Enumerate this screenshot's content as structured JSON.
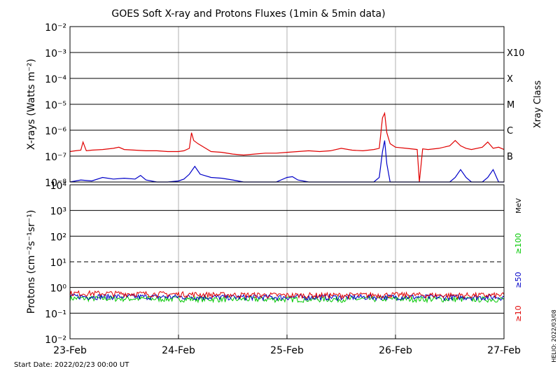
{
  "chart_data": [
    {
      "type": "line",
      "title": "GOES Soft X-ray and Protons Fluxes   (1min & 5min data)",
      "ylabel": "X-rays (Watts m⁻²)",
      "yscale": "log",
      "ylim": [
        1e-08,
        0.01
      ],
      "y_tick_labels": [
        "10⁻⁸",
        "10⁻⁷",
        "10⁻⁶",
        "10⁻⁵",
        "10⁻⁴",
        "10⁻³",
        "10⁻²"
      ],
      "right_axis_title": "Xray Class",
      "xray_classes": [
        {
          "label": "B",
          "flux": 1e-07
        },
        {
          "label": "C",
          "flux": 1e-06
        },
        {
          "label": "M",
          "flux": 1e-05
        },
        {
          "label": "X",
          "flux": 0.0001
        },
        {
          "label": "X10",
          "flux": 0.001
        }
      ],
      "x_day_range": [
        0,
        4
      ],
      "series": [
        {
          "color": "#e00000",
          "x": [
            0.0,
            0.05,
            0.1,
            0.12,
            0.15,
            0.2,
            0.3,
            0.4,
            0.45,
            0.5,
            0.6,
            0.7,
            0.8,
            0.9,
            1.0,
            1.05,
            1.1,
            1.12,
            1.14,
            1.18,
            1.25,
            1.3,
            1.4,
            1.5,
            1.6,
            1.7,
            1.8,
            1.9,
            2.0,
            2.1,
            2.2,
            2.3,
            2.4,
            2.5,
            2.6,
            2.7,
            2.8,
            2.85,
            2.88,
            2.9,
            2.92,
            2.95,
            3.0,
            3.1,
            3.2,
            3.22,
            3.25,
            3.3,
            3.4,
            3.5,
            3.55,
            3.6,
            3.65,
            3.7,
            3.8,
            3.85,
            3.9,
            3.95,
            4.0
          ],
          "y": [
            1.5e-07,
            1.6e-07,
            1.7e-07,
            3.5e-07,
            1.6e-07,
            1.7e-07,
            1.8e-07,
            2e-07,
            2.2e-07,
            1.8e-07,
            1.7e-07,
            1.6e-07,
            1.6e-07,
            1.5e-07,
            1.5e-07,
            1.6e-07,
            2e-07,
            8e-07,
            4e-07,
            3e-07,
            2e-07,
            1.5e-07,
            1.4e-07,
            1.2e-07,
            1.1e-07,
            1.2e-07,
            1.3e-07,
            1.3e-07,
            1.4e-07,
            1.5e-07,
            1.6e-07,
            1.5e-07,
            1.6e-07,
            2e-07,
            1.7e-07,
            1.6e-07,
            1.8e-07,
            2e-07,
            3e-06,
            4.5e-06,
            8e-07,
            3e-07,
            2.2e-07,
            2e-07,
            1.8e-07,
            1e-08,
            1.9e-07,
            1.8e-07,
            2e-07,
            2.5e-07,
            4e-07,
            2.5e-07,
            2e-07,
            1.8e-07,
            2.2e-07,
            3.5e-07,
            2e-07,
            2.2e-07,
            1.8e-07
          ]
        },
        {
          "color": "#0000c8",
          "x": [
            0.0,
            0.1,
            0.2,
            0.3,
            0.4,
            0.5,
            0.6,
            0.65,
            0.7,
            0.8,
            0.9,
            1.0,
            1.05,
            1.1,
            1.15,
            1.2,
            1.3,
            1.4,
            1.5,
            1.6,
            1.7,
            1.8,
            1.9,
            2.0,
            2.05,
            2.1,
            2.2,
            2.3,
            2.4,
            2.5,
            2.6,
            2.7,
            2.8,
            2.85,
            2.88,
            2.9,
            2.92,
            2.95,
            3.0,
            3.1,
            3.2,
            3.3,
            3.4,
            3.5,
            3.55,
            3.6,
            3.65,
            3.7,
            3.8,
            3.85,
            3.9,
            3.95,
            4.0
          ],
          "y": [
            1e-08,
            1.2e-08,
            1.1e-08,
            1.5e-08,
            1.3e-08,
            1.4e-08,
            1.3e-08,
            1.8e-08,
            1.2e-08,
            1e-08,
            1e-08,
            1.1e-08,
            1.3e-08,
            2e-08,
            4e-08,
            2e-08,
            1.5e-08,
            1.4e-08,
            1.2e-08,
            1e-08,
            1e-08,
            1e-08,
            1e-08,
            1.5e-08,
            1.6e-08,
            1.2e-08,
            1e-08,
            1e-08,
            1e-08,
            1e-08,
            1e-08,
            1e-08,
            1e-08,
            1.5e-08,
            1.5e-07,
            4e-07,
            5e-08,
            1e-08,
            1e-08,
            1e-08,
            1e-08,
            1e-08,
            1e-08,
            1e-08,
            1.5e-08,
            3e-08,
            1.5e-08,
            1e-08,
            1e-08,
            1.5e-08,
            3e-08,
            1e-08,
            1e-08
          ]
        }
      ]
    },
    {
      "type": "line",
      "ylabel": "Protons (cm⁻²s⁻¹sr⁻¹)",
      "yscale": "log",
      "ylim": [
        0.01,
        10000
      ],
      "y_tick_labels": [
        "10⁻²",
        "10⁻¹",
        "10⁰",
        "10¹",
        "10²",
        "10³",
        "10⁴"
      ],
      "alert_threshold": 10,
      "right_axis_title": "MeV",
      "x_day_range": [
        0,
        4
      ],
      "series": [
        {
          "name": "≥10",
          "color": "#e00000",
          "level": 0.55,
          "x": [
            0,
            0.5,
            1,
            1.5,
            2,
            2.5,
            3,
            3.5,
            4
          ],
          "y": [
            0.6,
            0.58,
            0.55,
            0.52,
            0.5,
            0.5,
            0.52,
            0.5,
            0.5
          ]
        },
        {
          "name": "≥50",
          "color": "#0000c8",
          "level": 0.45,
          "x": [
            0,
            0.5,
            1,
            1.5,
            2,
            2.5,
            3,
            3.5,
            4
          ],
          "y": [
            0.45,
            0.44,
            0.43,
            0.42,
            0.42,
            0.42,
            0.43,
            0.42,
            0.42
          ]
        },
        {
          "name": "≥100",
          "color": "#00c800",
          "level": 0.37,
          "x": [
            0,
            0.5,
            1,
            1.5,
            2,
            2.5,
            3,
            3.5,
            4
          ],
          "y": [
            0.38,
            0.37,
            0.36,
            0.35,
            0.35,
            0.35,
            0.36,
            0.35,
            0.35
          ]
        }
      ],
      "x_tick_labels": [
        "23-Feb",
        "24-Feb",
        "25-Feb",
        "26-Feb",
        "27-Feb"
      ]
    }
  ],
  "footer": {
    "start_date": "Start Date: 2022/02/23 00:00 UT",
    "credit": "HELIO: 2022/03/08"
  }
}
